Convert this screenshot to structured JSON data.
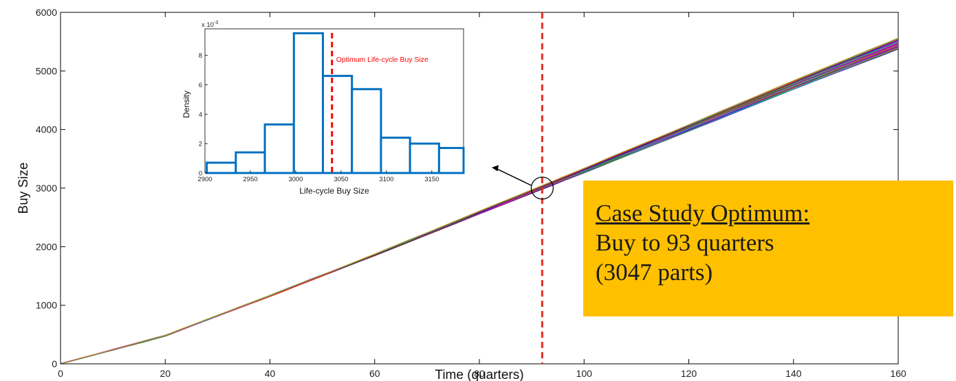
{
  "chart_data": [
    {
      "type": "line",
      "xlabel": "Time (quarters)",
      "ylabel": "Buy Size",
      "xlim": [
        0,
        160
      ],
      "ylim": [
        0,
        6000
      ],
      "xticks": [
        0,
        20,
        40,
        60,
        80,
        100,
        120,
        140,
        160
      ],
      "yticks": [
        0,
        1000,
        2000,
        3000,
        4000,
        5000,
        6000
      ],
      "grid": false,
      "series_description_count": 30,
      "series_endpoint_range": [
        5370,
        5560
      ],
      "series": [
        {
          "x": [
            0,
            20,
            40,
            60,
            80,
            93,
            100,
            120,
            140,
            160
          ],
          "values": [
            0,
            480,
            1160,
            1860,
            2580,
            3047,
            3300,
            4030,
            4760,
            5470
          ]
        }
      ],
      "series_colors": [
        "#0000ff",
        "#ff00ff",
        "#00aa00",
        "#ff0000",
        "#00cccc",
        "#cc8800",
        "#222222",
        "#8800cc"
      ],
      "vertical_marker": {
        "x": 92,
        "color": "#e0301e",
        "style": "dashed"
      },
      "highlight_circle": {
        "x": 92,
        "y": 3000
      }
    },
    {
      "type": "bar",
      "inset": true,
      "xlabel": "Life-cycle Buy Size",
      "ylabel": "Density",
      "exponent_label": "x 10",
      "exponent_power": "-3",
      "xlim": [
        2900,
        3185
      ],
      "ylim": [
        0,
        9.8
      ],
      "xticks": [
        2900,
        2950,
        3000,
        3050,
        3100,
        3150
      ],
      "yticks": [
        0,
        2,
        4,
        6,
        8
      ],
      "bin_edges": [
        2902,
        2934,
        2966,
        2998,
        3030,
        3062,
        3094,
        3126,
        3158,
        3185
      ],
      "values": [
        0.7,
        1.4,
        3.3,
        9.5,
        6.6,
        5.7,
        2.4,
        2.0,
        1.7
      ],
      "bar_color": "#0070c0",
      "optimum_line": {
        "x": 3040,
        "label": "Optimum Life-cycle Buy Size",
        "color": "#ff0000"
      }
    }
  ],
  "callout": {
    "heading": "Case Study Optimum:",
    "line1": "Buy to 93 quarters",
    "line2": "(3047 parts)"
  }
}
